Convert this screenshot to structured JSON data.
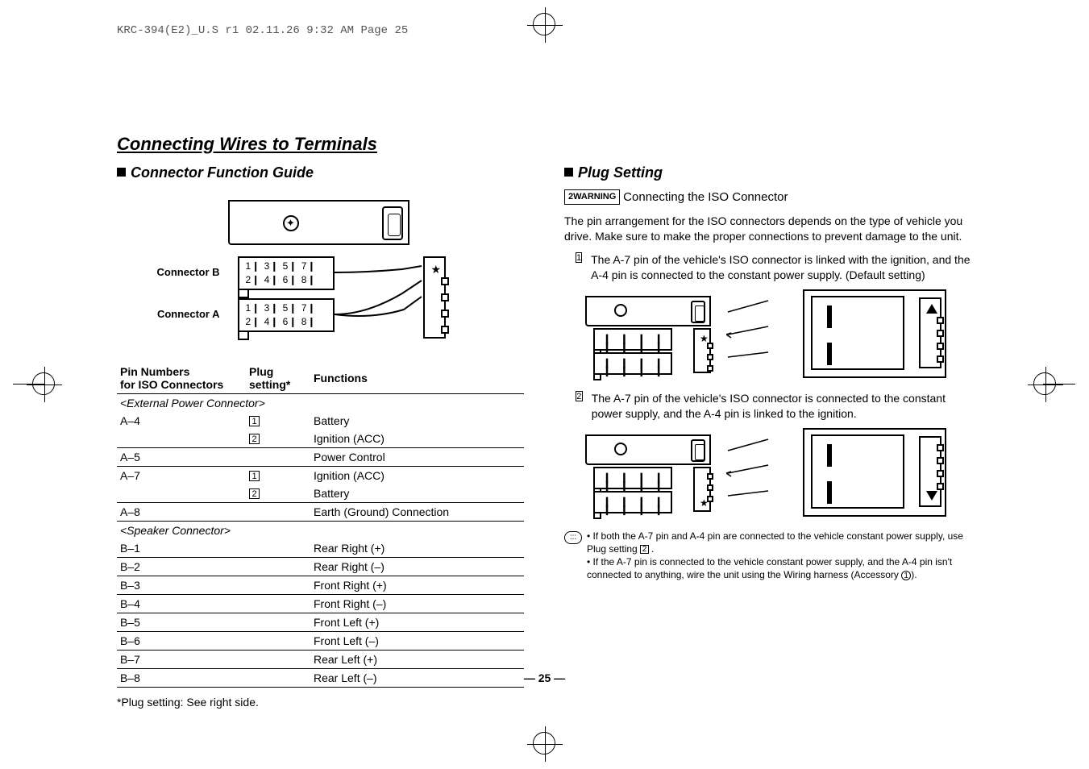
{
  "print_header": "KRC-394(E2)_U.S r1  02.11.26  9:32 AM  Page 25",
  "main_title": "Connecting Wires to Terminals",
  "left": {
    "section_title": "Connector Function Guide",
    "conn_b_label": "Connector B",
    "conn_a_label": "Connector A",
    "pins_row1": "1❙ 3❙ 5❙ 7❙",
    "pins_row2": "2❙ 4❙ 6❙ 8❙",
    "table": {
      "h1": "Pin Numbers\nfor ISO Connectors",
      "h2": "Plug\nsetting*",
      "h3": "Functions",
      "sect1": "<External Power Connector>",
      "rows1": [
        {
          "pin": "A–4",
          "plug": "1",
          "fn": "Battery"
        },
        {
          "pin": "",
          "plug": "2",
          "fn": "Ignition (ACC)"
        },
        {
          "pin": "A–5",
          "plug": "",
          "fn": "Power Control"
        },
        {
          "pin": "A–7",
          "plug": "1",
          "fn": "Ignition (ACC)"
        },
        {
          "pin": "",
          "plug": "2",
          "fn": "Battery"
        },
        {
          "pin": "A–8",
          "plug": "",
          "fn": "Earth (Ground) Connection"
        }
      ],
      "sect2": "<Speaker Connector>",
      "rows2": [
        {
          "pin": "B–1",
          "fn": "Rear Right (+)"
        },
        {
          "pin": "B–2",
          "fn": "Rear Right (–)"
        },
        {
          "pin": "B–3",
          "fn": "Front Right (+)"
        },
        {
          "pin": "B–4",
          "fn": "Front Right (–)"
        },
        {
          "pin": "B–5",
          "fn": "Front Left (+)"
        },
        {
          "pin": "B–6",
          "fn": "Front Left (–)"
        },
        {
          "pin": "B–7",
          "fn": "Rear Left (+)"
        },
        {
          "pin": "B–8",
          "fn": "Rear Left (–)"
        }
      ]
    },
    "footnote": "*Plug setting: See right side."
  },
  "right": {
    "section_title": "Plug Setting",
    "warn_label": "2WARNING",
    "warn_title": "Connecting the ISO Connector",
    "intro": "The pin arrangement for the ISO connectors depends on the type of vehicle you drive. Make sure to make the proper connections to prevent damage to the unit.",
    "item1": "The A-7 pin of the vehicle's ISO connector is linked with the ignition, and the A-4 pin is connected to the constant power supply. (Default setting)",
    "item2": "The A-7 pin of the vehicle's ISO connector is connected to the constant power supply, and the A-4 pin is linked to the ignition.",
    "note1": "If both the A-7 pin and A-4 pin are connected to the vehicle constant power supply, use Plug setting ",
    "note1_tail": ".",
    "note2a": "If the A-7 pin is connected to the vehicle constant power supply, and the A-4 pin isn't connected to anything, wire the unit using the Wiring harness (Accessory ",
    "note2b": ")."
  },
  "page_num": "— 25 —"
}
